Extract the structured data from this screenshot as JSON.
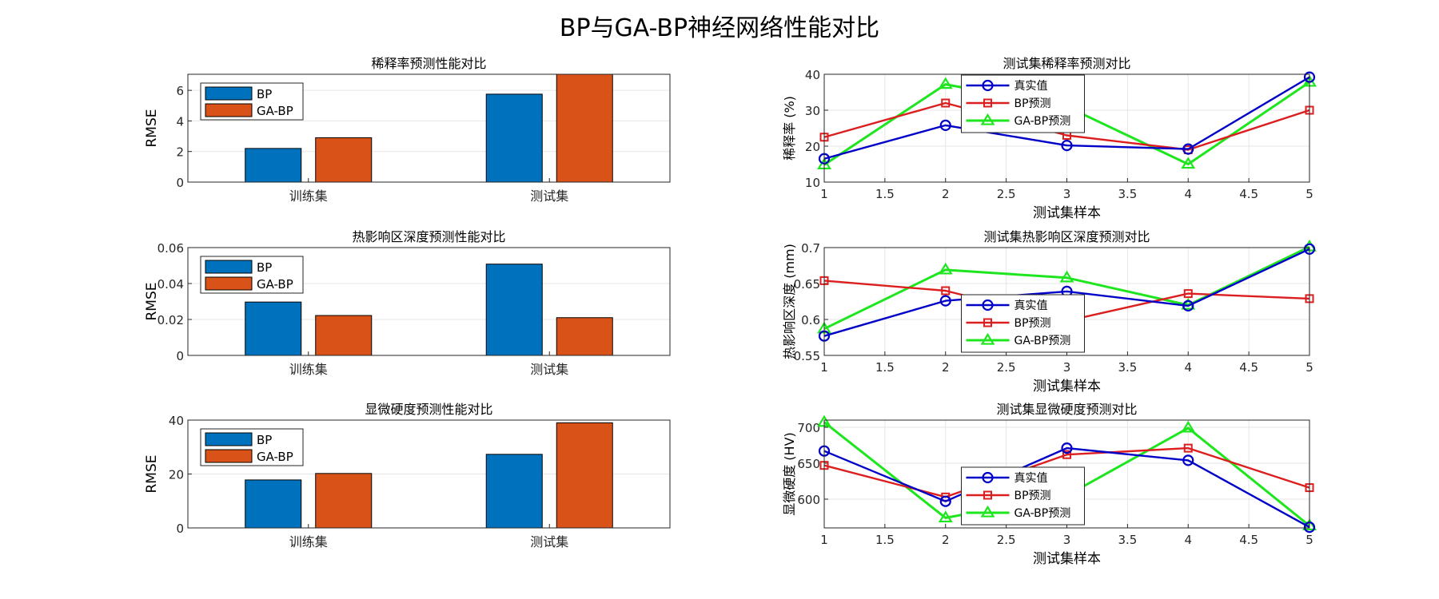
{
  "figure": {
    "title": "BP与GA-BP神经网络性能对比"
  },
  "colors": {
    "bp_bar": "#0072BD",
    "gabp_bar": "#D95319",
    "true_line": "#0000C8",
    "bp_line": "#DC1E1E",
    "gabp_line": "#1EE61E",
    "grid": "#E6E6E6",
    "axis": "#262626"
  },
  "chart_data": [
    {
      "id": "bar-dilution",
      "type": "bar",
      "title": "稀释率预测性能对比",
      "xlabel": "",
      "ylabel": "RMSE",
      "categories": [
        "训练集",
        "测试集"
      ],
      "series": [
        {
          "name": "BP",
          "values": [
            2.2,
            5.75
          ]
        },
        {
          "name": "GA-BP",
          "values": [
            2.9,
            7.05
          ]
        }
      ],
      "ylim": [
        0,
        7.05
      ],
      "yticks": [
        0,
        2,
        4,
        6
      ],
      "ytick_labels": [
        "0",
        "2",
        "4",
        "6"
      ],
      "grid": true,
      "legend": "top-left"
    },
    {
      "id": "bar-haz",
      "type": "bar",
      "title": "热影响区深度预测性能对比",
      "xlabel": "",
      "ylabel": "RMSE",
      "categories": [
        "训练集",
        "测试集"
      ],
      "series": [
        {
          "name": "BP",
          "values": [
            0.0297,
            0.0508
          ]
        },
        {
          "name": "GA-BP",
          "values": [
            0.0222,
            0.021
          ]
        }
      ],
      "ylim": [
        0,
        0.06
      ],
      "yticks": [
        0,
        0.02,
        0.04,
        0.06
      ],
      "ytick_labels": [
        "0",
        "0.02",
        "0.04",
        "0.06"
      ],
      "grid": true,
      "legend": "top-left"
    },
    {
      "id": "bar-hardness",
      "type": "bar",
      "title": "显微硬度预测性能对比",
      "xlabel": "",
      "ylabel": "RMSE",
      "categories": [
        "训练集",
        "测试集"
      ],
      "series": [
        {
          "name": "BP",
          "values": [
            17.8,
            27.3
          ]
        },
        {
          "name": "GA-BP",
          "values": [
            20.2,
            39.0
          ]
        }
      ],
      "ylim": [
        0,
        40
      ],
      "yticks": [
        0,
        20,
        40
      ],
      "ytick_labels": [
        "0",
        "20",
        "40"
      ],
      "grid": true,
      "legend": "top-left"
    },
    {
      "id": "line-dilution",
      "type": "line",
      "title": "测试集稀释率预测对比",
      "xlabel": "测试集样本",
      "ylabel": "稀释率 (%)",
      "x": [
        1,
        2,
        3,
        4,
        5
      ],
      "series": [
        {
          "name": "真实值",
          "marker": "circle",
          "values": [
            16.5,
            25.8,
            20.2,
            19.2,
            39.2
          ]
        },
        {
          "name": "BP预测",
          "marker": "square",
          "values": [
            22.5,
            32.0,
            23.0,
            19.0,
            30.0
          ]
        },
        {
          "name": "GA-BP预测",
          "marker": "triangle",
          "values": [
            14.8,
            37.2,
            31.0,
            15.0,
            37.8
          ]
        }
      ],
      "xlim": [
        1,
        5
      ],
      "ylim": [
        10,
        40
      ],
      "xticks": [
        1,
        1.5,
        2,
        2.5,
        3,
        3.5,
        4,
        4.5,
        5
      ],
      "xtick_labels": [
        "1",
        "1.5",
        "2",
        "2.5",
        "3",
        "3.5",
        "4",
        "4.5",
        "5"
      ],
      "yticks": [
        10,
        20,
        30,
        40
      ],
      "ytick_labels": [
        "10",
        "20",
        "30",
        "40"
      ],
      "grid": true,
      "legend": "top-center"
    },
    {
      "id": "line-haz",
      "type": "line",
      "title": "测试集热影响区深度预测对比",
      "xlabel": "测试集样本",
      "ylabel": "热影响区深度 (mm)",
      "x": [
        1,
        2,
        3,
        4,
        5
      ],
      "series": [
        {
          "name": "真实值",
          "marker": "circle",
          "values": [
            0.577,
            0.626,
            0.639,
            0.619,
            0.698
          ]
        },
        {
          "name": "BP预测",
          "marker": "square",
          "values": [
            0.654,
            0.64,
            0.598,
            0.636,
            0.629
          ]
        },
        {
          "name": "GA-BP预测",
          "marker": "triangle",
          "values": [
            0.587,
            0.669,
            0.658,
            0.62,
            0.701
          ]
        }
      ],
      "xlim": [
        1,
        5
      ],
      "ylim": [
        0.55,
        0.7
      ],
      "xticks": [
        1,
        1.5,
        2,
        2.5,
        3,
        3.5,
        4,
        4.5,
        5
      ],
      "xtick_labels": [
        "1",
        "1.5",
        "2",
        "2.5",
        "3",
        "3.5",
        "4",
        "4.5",
        "5"
      ],
      "yticks": [
        0.55,
        0.6,
        0.65,
        0.7
      ],
      "ytick_labels": [
        "0.55",
        "0.6",
        "0.65",
        "0.7"
      ],
      "grid": true,
      "legend": "bottom-center"
    },
    {
      "id": "line-hardness",
      "type": "line",
      "title": "测试集显微硬度预测对比",
      "xlabel": "测试集样本",
      "ylabel": "显微硬度 (HV)",
      "x": [
        1,
        2,
        3,
        4,
        5
      ],
      "series": [
        {
          "name": "真实值",
          "marker": "circle",
          "values": [
            667,
            597,
            671,
            654,
            561
          ]
        },
        {
          "name": "BP预测",
          "marker": "square",
          "values": [
            647,
            603,
            662,
            671,
            616
          ]
        },
        {
          "name": "GA-BP预测",
          "marker": "triangle",
          "values": [
            707,
            574,
            605,
            699,
            563
          ]
        }
      ],
      "xlim": [
        1,
        5
      ],
      "ylim": [
        560,
        710
      ],
      "xticks": [
        1,
        1.5,
        2,
        2.5,
        3,
        3.5,
        4,
        4.5,
        5
      ],
      "xtick_labels": [
        "1",
        "1.5",
        "2",
        "2.5",
        "3",
        "3.5",
        "4",
        "4.5",
        "5"
      ],
      "yticks": [
        600,
        650,
        700
      ],
      "ytick_labels": [
        "600",
        "650",
        "700"
      ],
      "grid": true,
      "legend": "bottom-center"
    }
  ]
}
